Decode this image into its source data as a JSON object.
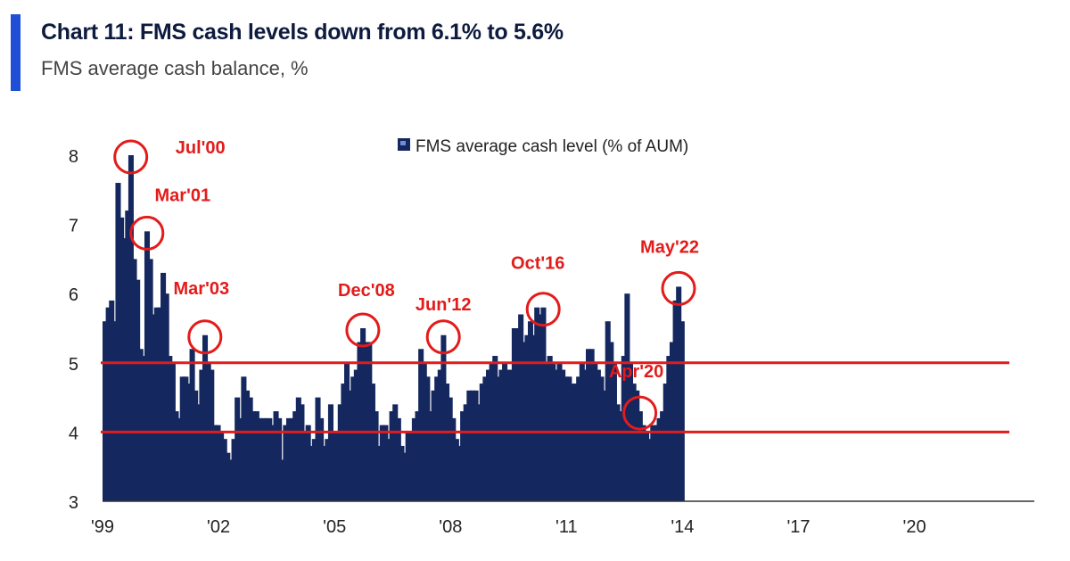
{
  "header": {
    "title": "Chart 11: FMS cash levels down from 6.1% to 5.6%",
    "subtitle": "FMS average cash balance, %"
  },
  "colors": {
    "bar": "#14285f",
    "accent": "#1f4fd6",
    "reference_line": "#e31b1b",
    "annotation": "#e31b1b",
    "axis": "#333333"
  },
  "chart_data": {
    "type": "bar",
    "title": "Chart 11: FMS cash levels down from 6.1% to 5.6%",
    "ylabel": "FMS average cash balance, %",
    "xlabel": "",
    "ylim": [
      3,
      8
    ],
    "yticks": [
      3,
      4,
      5,
      6,
      7,
      8
    ],
    "x_start": 1999.0,
    "x_step": 0.08333,
    "xticks": [
      {
        "label": "'99",
        "x": 1999
      },
      {
        "label": "'02",
        "x": 2002
      },
      {
        "label": "'05",
        "x": 2005
      },
      {
        "label": "'08",
        "x": 2008
      },
      {
        "label": "'11",
        "x": 2011
      },
      {
        "label": "'14",
        "x": 2014
      },
      {
        "label": "'17",
        "x": 2017
      },
      {
        "label": "'20",
        "x": 2020
      }
    ],
    "xlim": [
      1999,
      2022.5
    ],
    "reference_lines": [
      5,
      4
    ],
    "legend": {
      "label": "FMS average cash level (% of AUM)",
      "position": "top-center"
    },
    "series": [
      {
        "name": "FMS average cash level (% of AUM)",
        "values": [
          5.6,
          5.8,
          5.9,
          5.6,
          7.6,
          7.1,
          6.8,
          7.2,
          8.0,
          6.5,
          6.2,
          5.2,
          5.1,
          6.9,
          6.5,
          5.7,
          5.8,
          5.8,
          6.3,
          6.0,
          5.1,
          5.0,
          4.3,
          4.2,
          4.8,
          4.8,
          4.7,
          5.2,
          4.6,
          4.4,
          4.9,
          5.4,
          5.0,
          4.9,
          4.1,
          4.1,
          4.0,
          3.9,
          3.7,
          3.6,
          3.9,
          4.5,
          4.2,
          4.8,
          4.6,
          4.5,
          4.3,
          4.3,
          4.2,
          4.2,
          4.2,
          4.2,
          4.1,
          4.3,
          4.2,
          3.6,
          4.1,
          4.2,
          4.2,
          4.3,
          4.5,
          4.4,
          4.0,
          4.1,
          3.8,
          3.9,
          4.5,
          4.2,
          3.8,
          3.9,
          4.4,
          4.0,
          4.0,
          4.4,
          4.7,
          5.0,
          4.6,
          4.8,
          4.9,
          5.3,
          5.5,
          5.3,
          5.3,
          4.7,
          4.3,
          3.8,
          4.1,
          4.1,
          3.9,
          4.3,
          4.4,
          4.2,
          3.8,
          3.7,
          4.0,
          4.0,
          4.2,
          4.3,
          5.2,
          5.0,
          4.8,
          4.3,
          4.6,
          4.8,
          4.9,
          5.4,
          4.7,
          4.5,
          4.2,
          3.9,
          3.8,
          4.3,
          4.4,
          4.6,
          4.6,
          4.6,
          4.4,
          4.7,
          4.8,
          4.9,
          5.0,
          5.1,
          4.8,
          4.9,
          5.0,
          4.9,
          4.9,
          5.5,
          5.5,
          5.7,
          5.3,
          5.4,
          5.6,
          5.4,
          5.8,
          5.7,
          5.8,
          5.0,
          5.1,
          5.0,
          4.9,
          5.0,
          4.9,
          4.8,
          4.8,
          4.7,
          4.7,
          4.8,
          5.0,
          4.9,
          5.2,
          5.2,
          5.0,
          4.9,
          4.8,
          4.6,
          5.6,
          5.3,
          5.0,
          4.4,
          4.3,
          5.1,
          6.0,
          5.0,
          4.7,
          4.6,
          4.3,
          4.1,
          4.0,
          3.9,
          4.1,
          4.1,
          4.2,
          4.3,
          4.7,
          5.1,
          5.3,
          5.9,
          6.1,
          5.6
        ]
      }
    ],
    "annotations": [
      {
        "label": "Jul'00",
        "index": 8
      },
      {
        "label": "Mar'01",
        "index": 13
      },
      {
        "label": "Mar'03",
        "index": 31
      },
      {
        "label": "Dec'08",
        "index": 80
      },
      {
        "label": "Jun'12",
        "index": 105
      },
      {
        "label": "Oct'16",
        "index": 136
      },
      {
        "label": "Apr'20",
        "index": 166
      },
      {
        "label": "May'22",
        "index": 178
      }
    ]
  }
}
